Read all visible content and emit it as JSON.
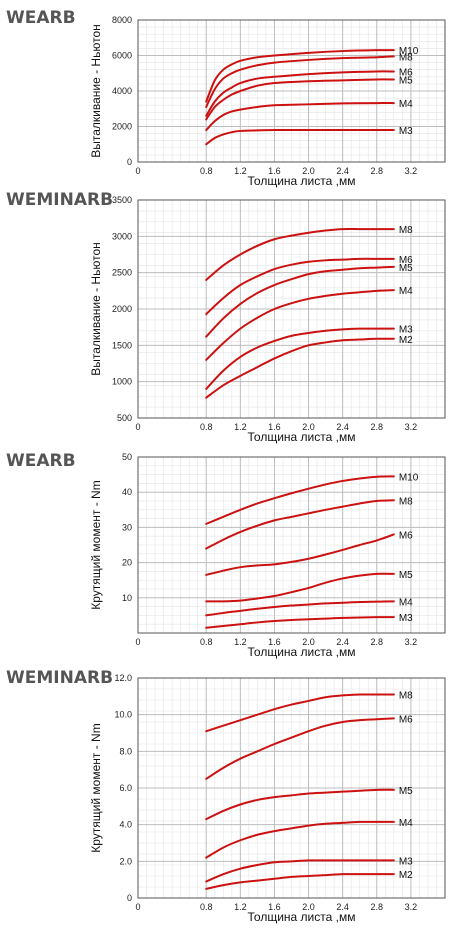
{
  "chart_data": [
    {
      "type": "line",
      "title": "WEARB",
      "xlabel": "Толщина листа ,мм",
      "ylabel": "Выталкивание - Ньютон",
      "xlim": [
        0,
        3.6
      ],
      "ylim": [
        0,
        8000
      ],
      "xticks": [
        "0",
        "0.8",
        "1.2",
        "1.6",
        "2.0",
        "2.4",
        "2.8",
        "3.2"
      ],
      "yticks": [
        "0",
        "2000",
        "4000",
        "6000",
        "8000"
      ],
      "grid": true,
      "series": [
        {
          "name": "M10",
          "x": [
            0.8,
            0.9,
            1.0,
            1.1,
            1.2,
            1.4,
            1.6,
            2.0,
            2.4,
            2.8,
            3.0
          ],
          "values": [
            3400,
            4600,
            5200,
            5500,
            5700,
            5900,
            6000,
            6150,
            6250,
            6300,
            6300
          ]
        },
        {
          "name": "M8",
          "x": [
            0.8,
            0.9,
            1.0,
            1.1,
            1.2,
            1.4,
            1.6,
            2.0,
            2.4,
            2.8,
            3.0
          ],
          "values": [
            3100,
            4100,
            4700,
            5000,
            5200,
            5450,
            5600,
            5750,
            5850,
            5900,
            5950
          ]
        },
        {
          "name": "M6",
          "x": [
            0.8,
            0.9,
            1.0,
            1.1,
            1.2,
            1.4,
            1.6,
            2.0,
            2.4,
            2.8,
            3.0
          ],
          "values": [
            2600,
            3400,
            3900,
            4200,
            4450,
            4700,
            4800,
            4950,
            5050,
            5100,
            5100
          ]
        },
        {
          "name": "M5",
          "x": [
            0.8,
            0.9,
            1.0,
            1.1,
            1.2,
            1.4,
            1.6,
            2.0,
            2.4,
            2.8,
            3.0
          ],
          "values": [
            2400,
            3100,
            3500,
            3800,
            4000,
            4300,
            4450,
            4550,
            4600,
            4650,
            4650
          ]
        },
        {
          "name": "M4",
          "x": [
            0.8,
            0.9,
            1.0,
            1.1,
            1.2,
            1.4,
            1.6,
            2.0,
            2.4,
            2.8,
            3.0
          ],
          "values": [
            1800,
            2300,
            2650,
            2850,
            2950,
            3100,
            3200,
            3250,
            3300,
            3320,
            3320
          ]
        },
        {
          "name": "M3",
          "x": [
            0.8,
            0.9,
            1.0,
            1.1,
            1.2,
            1.4,
            1.6,
            2.0,
            2.4,
            2.8,
            3.0
          ],
          "values": [
            1000,
            1350,
            1550,
            1680,
            1750,
            1780,
            1800,
            1800,
            1800,
            1800,
            1800
          ]
        }
      ]
    },
    {
      "type": "line",
      "title": "WEMINARB",
      "xlabel": "Толщина листа ,мм",
      "ylabel": "Выталкивание - Ньютон",
      "xlim": [
        0,
        3.6
      ],
      "ylim": [
        500,
        3500
      ],
      "xticks": [
        "0",
        "0.8",
        "1.2",
        "1.6",
        "2.0",
        "2.4",
        "2.8",
        "3.2"
      ],
      "yticks": [
        "500",
        "1000",
        "1500",
        "2000",
        "2500",
        "3000",
        "3500"
      ],
      "grid": true,
      "series": [
        {
          "name": "M8",
          "x": [
            0.8,
            1.0,
            1.2,
            1.4,
            1.6,
            1.8,
            2.0,
            2.2,
            2.4,
            2.6,
            2.8,
            3.0
          ],
          "values": [
            2400,
            2600,
            2750,
            2870,
            2960,
            3010,
            3050,
            3080,
            3100,
            3100,
            3100,
            3100
          ]
        },
        {
          "name": "M6",
          "x": [
            0.8,
            1.0,
            1.2,
            1.4,
            1.6,
            1.8,
            2.0,
            2.2,
            2.4,
            2.6,
            2.8,
            3.0
          ],
          "values": [
            1930,
            2150,
            2330,
            2450,
            2550,
            2610,
            2650,
            2670,
            2680,
            2690,
            2690,
            2690
          ]
        },
        {
          "name": "M5",
          "x": [
            0.8,
            1.0,
            1.2,
            1.4,
            1.6,
            1.8,
            2.0,
            2.2,
            2.4,
            2.6,
            2.8,
            3.0
          ],
          "values": [
            1620,
            1870,
            2070,
            2220,
            2330,
            2410,
            2480,
            2520,
            2540,
            2560,
            2570,
            2580
          ]
        },
        {
          "name": "M4",
          "x": [
            0.8,
            1.0,
            1.2,
            1.4,
            1.6,
            1.8,
            2.0,
            2.2,
            2.4,
            2.6,
            2.8,
            3.0
          ],
          "values": [
            1300,
            1530,
            1730,
            1880,
            2000,
            2080,
            2140,
            2180,
            2210,
            2230,
            2250,
            2260
          ]
        },
        {
          "name": "M3",
          "x": [
            0.8,
            1.0,
            1.2,
            1.4,
            1.6,
            1.8,
            2.0,
            2.2,
            2.4,
            2.6,
            2.8,
            3.0
          ],
          "values": [
            900,
            1150,
            1340,
            1470,
            1560,
            1630,
            1670,
            1700,
            1720,
            1730,
            1730,
            1730
          ]
        },
        {
          "name": "M2",
          "x": [
            0.8,
            1.0,
            1.2,
            1.4,
            1.6,
            1.8,
            2.0,
            2.2,
            2.4,
            2.6,
            2.8,
            3.0
          ],
          "values": [
            780,
            950,
            1080,
            1200,
            1320,
            1420,
            1500,
            1540,
            1570,
            1580,
            1590,
            1590
          ]
        }
      ]
    },
    {
      "type": "line",
      "title": "WEARB",
      "xlabel": "Толщина листа ,мм",
      "ylabel": "Крутящий момент - Nm",
      "xlim": [
        0,
        3.6
      ],
      "ylim": [
        0,
        50
      ],
      "xticks": [
        "0",
        "0.8",
        "1.2",
        "1.6",
        "2.0",
        "2.4",
        "2.8",
        "3.2"
      ],
      "yticks": [
        "10",
        "20",
        "30",
        "40",
        "50"
      ],
      "grid": true,
      "series": [
        {
          "name": "M10",
          "x": [
            0.8,
            1.0,
            1.2,
            1.4,
            1.6,
            1.8,
            2.0,
            2.2,
            2.4,
            2.6,
            2.8,
            3.0
          ],
          "values": [
            31,
            33,
            35,
            36.8,
            38.3,
            39.7,
            41,
            42.2,
            43.2,
            43.9,
            44.4,
            44.5
          ]
        },
        {
          "name": "M8",
          "x": [
            0.8,
            1.0,
            1.2,
            1.4,
            1.6,
            1.8,
            2.0,
            2.2,
            2.4,
            2.6,
            2.8,
            3.0
          ],
          "values": [
            24,
            26.5,
            28.7,
            30.5,
            32,
            33,
            34,
            35,
            35.9,
            36.8,
            37.5,
            37.7
          ]
        },
        {
          "name": "M6",
          "x": [
            0.8,
            1.0,
            1.2,
            1.4,
            1.6,
            1.8,
            2.0,
            2.2,
            2.4,
            2.6,
            2.8,
            3.0
          ],
          "values": [
            16.5,
            17.7,
            18.7,
            19.2,
            19.5,
            20.2,
            21.1,
            22.3,
            23.6,
            25,
            26.3,
            28
          ]
        },
        {
          "name": "M5",
          "x": [
            0.8,
            1.0,
            1.2,
            1.4,
            1.6,
            1.8,
            2.0,
            2.2,
            2.4,
            2.6,
            2.8,
            3.0
          ],
          "values": [
            9,
            9,
            9.2,
            9.8,
            10.5,
            11.6,
            12.8,
            14.3,
            15.5,
            16.3,
            16.8,
            16.8
          ]
        },
        {
          "name": "M4",
          "x": [
            0.8,
            1.0,
            1.2,
            1.4,
            1.6,
            1.8,
            2.0,
            2.2,
            2.4,
            2.6,
            2.8,
            3.0
          ],
          "values": [
            5,
            5.7,
            6.3,
            6.9,
            7.4,
            7.8,
            8.1,
            8.4,
            8.6,
            8.8,
            8.9,
            9
          ]
        },
        {
          "name": "M3",
          "x": [
            0.8,
            1.0,
            1.2,
            1.4,
            1.6,
            1.8,
            2.0,
            2.2,
            2.4,
            2.6,
            2.8,
            3.0
          ],
          "values": [
            1.5,
            2,
            2.5,
            3,
            3.4,
            3.7,
            3.9,
            4.1,
            4.3,
            4.4,
            4.5,
            4.5
          ]
        }
      ]
    },
    {
      "type": "line",
      "title": "WEMINARB",
      "xlabel": "Толщина листа ,мм",
      "ylabel": "Крутящий момент - Nm",
      "xlim": [
        0,
        3.6
      ],
      "ylim": [
        0,
        12
      ],
      "xticks": [
        "0",
        "0.8",
        "1.2",
        "1.6",
        "2.0",
        "2.4",
        "2.8",
        "3.2"
      ],
      "yticks": [
        "0",
        "2.0",
        "4.0",
        "6.0",
        "8.0",
        "10.0",
        "12.0"
      ],
      "grid": true,
      "series": [
        {
          "name": "M8",
          "x": [
            0.8,
            1.0,
            1.2,
            1.4,
            1.6,
            1.8,
            2.0,
            2.2,
            2.4,
            2.6,
            2.8,
            3.0
          ],
          "values": [
            9.1,
            9.4,
            9.7,
            10,
            10.3,
            10.55,
            10.75,
            10.95,
            11.05,
            11.1,
            11.1,
            11.1
          ]
        },
        {
          "name": "M6",
          "x": [
            0.8,
            1.0,
            1.2,
            1.4,
            1.6,
            1.8,
            2.0,
            2.2,
            2.4,
            2.6,
            2.8,
            3.0
          ],
          "values": [
            6.5,
            7.1,
            7.6,
            8.0,
            8.4,
            8.75,
            9.1,
            9.4,
            9.6,
            9.7,
            9.75,
            9.8
          ]
        },
        {
          "name": "M5",
          "x": [
            0.8,
            1.0,
            1.2,
            1.4,
            1.6,
            1.8,
            2.0,
            2.2,
            2.4,
            2.6,
            2.8,
            3.0
          ],
          "values": [
            4.3,
            4.75,
            5.1,
            5.35,
            5.5,
            5.6,
            5.7,
            5.75,
            5.8,
            5.85,
            5.9,
            5.9
          ]
        },
        {
          "name": "M4",
          "x": [
            0.8,
            1.0,
            1.2,
            1.4,
            1.6,
            1.8,
            2.0,
            2.2,
            2.4,
            2.6,
            2.8,
            3.0
          ],
          "values": [
            2.2,
            2.75,
            3.15,
            3.45,
            3.65,
            3.8,
            3.95,
            4.05,
            4.1,
            4.15,
            4.15,
            4.15
          ]
        },
        {
          "name": "M3",
          "x": [
            0.8,
            1.0,
            1.2,
            1.4,
            1.6,
            1.8,
            2.0,
            2.2,
            2.4,
            2.6,
            2.8,
            3.0
          ],
          "values": [
            0.9,
            1.3,
            1.6,
            1.8,
            1.95,
            2.0,
            2.05,
            2.05,
            2.05,
            2.05,
            2.05,
            2.05
          ]
        },
        {
          "name": "M2",
          "x": [
            0.8,
            1.0,
            1.2,
            1.4,
            1.6,
            1.8,
            2.0,
            2.2,
            2.4,
            2.6,
            2.8,
            3.0
          ],
          "values": [
            0.5,
            0.7,
            0.85,
            0.95,
            1.05,
            1.15,
            1.2,
            1.25,
            1.3,
            1.3,
            1.3,
            1.3
          ]
        }
      ]
    }
  ],
  "style": {
    "curve_color": "#cc1111",
    "grid_color": "#bdbdbd",
    "minor_grid_color": "#e4e4e4",
    "axis_color": "#555555"
  }
}
